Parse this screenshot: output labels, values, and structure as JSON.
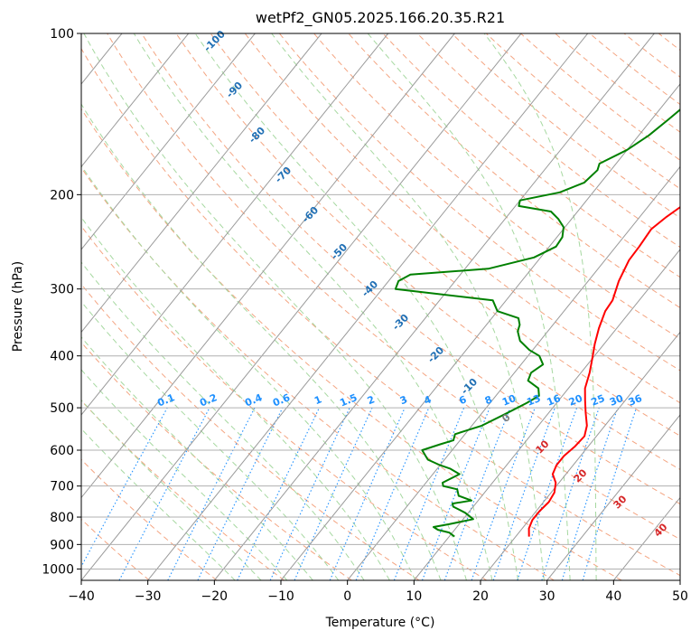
{
  "chart_data": {
    "type": "line",
    "title": "wetPf2_GN05.2025.166.20.35.R21",
    "xlabel": "Temperature (°C)",
    "ylabel": "Pressure (hPa)",
    "xlim": [
      -40,
      50
    ],
    "ylim": [
      1050,
      100
    ],
    "yscale": "log",
    "grid": true,
    "x_ticks": [
      "−40",
      "−30",
      "−20",
      "−10",
      "0",
      "10",
      "20",
      "30",
      "40",
      "50"
    ],
    "y_ticks": [
      "100",
      "200",
      "300",
      "400",
      "500",
      "600",
      "700",
      "800",
      "900",
      "1000"
    ],
    "series": [
      {
        "color": "#ff0000",
        "points": [
          [
            22,
            870
          ],
          [
            21,
            840
          ],
          [
            20.5,
            810
          ],
          [
            20.5,
            780
          ],
          [
            20.8,
            750
          ],
          [
            20.5,
            720
          ],
          [
            19.5,
            690
          ],
          [
            18,
            665
          ],
          [
            17.5,
            640
          ],
          [
            17.5,
            615
          ],
          [
            18,
            590
          ],
          [
            18.2,
            565
          ],
          [
            17.3,
            540
          ],
          [
            15.5,
            510
          ],
          [
            14,
            485
          ],
          [
            12.5,
            460
          ],
          [
            11.3,
            430
          ],
          [
            10,
            405
          ],
          [
            8.6,
            380
          ],
          [
            7.3,
            355
          ],
          [
            6.2,
            330
          ],
          [
            6,
            315
          ],
          [
            4.6,
            290
          ],
          [
            3.6,
            265
          ],
          [
            3.5,
            250
          ],
          [
            3.2,
            232
          ],
          [
            4,
            220
          ],
          [
            5.3,
            207
          ],
          [
            6,
            200
          ],
          [
            5.8,
            185
          ],
          [
            6.2,
            173
          ],
          [
            5.9,
            160
          ],
          [
            5.4,
            150
          ],
          [
            5,
            140
          ],
          [
            5.1,
            131
          ],
          [
            6.3,
            122
          ],
          [
            7.6,
            115
          ],
          [
            8.7,
            110
          ],
          [
            10.5,
            103
          ],
          [
            12.5,
            97
          ]
        ]
      },
      {
        "color": "#008000",
        "points": [
          [
            10.8,
            870
          ],
          [
            9.5,
            855
          ],
          [
            7.5,
            845
          ],
          [
            6.5,
            835
          ],
          [
            8.5,
            825
          ],
          [
            11.5,
            807
          ],
          [
            9.5,
            785
          ],
          [
            7,
            765
          ],
          [
            6.5,
            755
          ],
          [
            9,
            745
          ],
          [
            6.5,
            730
          ],
          [
            5.5,
            710
          ],
          [
            3,
            700
          ],
          [
            2.5,
            690
          ],
          [
            4,
            665
          ],
          [
            2,
            650
          ],
          [
            0,
            640
          ],
          [
            -2.5,
            625
          ],
          [
            -4.5,
            600
          ],
          [
            -2.5,
            585
          ],
          [
            -1,
            575
          ],
          [
            -1.5,
            560
          ],
          [
            0,
            550
          ],
          [
            1.5,
            540
          ],
          [
            3.5,
            515
          ],
          [
            5.5,
            490
          ],
          [
            6.5,
            475
          ],
          [
            5.5,
            460
          ],
          [
            3,
            445
          ],
          [
            2.5,
            430
          ],
          [
            3.3,
            415
          ],
          [
            1.7,
            400
          ],
          [
            -0.5,
            390
          ],
          [
            -3,
            375
          ],
          [
            -4.5,
            360
          ],
          [
            -5,
            350
          ],
          [
            -6,
            340
          ],
          [
            -10,
            330
          ],
          [
            -12,
            315
          ],
          [
            -28,
            300
          ],
          [
            -28.5,
            290
          ],
          [
            -27.5,
            282
          ],
          [
            -16.5,
            275
          ],
          [
            -11,
            262
          ],
          [
            -9,
            250
          ],
          [
            -9.2,
            240
          ],
          [
            -10.2,
            230
          ],
          [
            -12,
            222
          ],
          [
            -14,
            215
          ],
          [
            -19.5,
            210
          ],
          [
            -20,
            205
          ],
          [
            -15,
            198
          ],
          [
            -12.5,
            190
          ],
          [
            -12,
            180
          ],
          [
            -12.5,
            175
          ],
          [
            -10,
            165
          ],
          [
            -8.5,
            155
          ],
          [
            -7.5,
            145
          ],
          [
            -6.5,
            135
          ],
          [
            -4,
            125
          ],
          [
            -2,
            118
          ],
          [
            -1.5,
            110
          ],
          [
            0,
            103
          ],
          [
            1.5,
            97
          ]
        ]
      }
    ],
    "dry_adiabat_labels": [
      "-100",
      "-90",
      "-80",
      "-70",
      "-60",
      "-50",
      "-40",
      "-30",
      "-20",
      "-10",
      "0",
      "10",
      "20",
      "30",
      "40"
    ],
    "mixing_ratio_labels": [
      "0.1",
      "0.2",
      "0.4",
      "0.6",
      "1",
      "1.5",
      "2",
      "3",
      "4",
      "6",
      "8",
      "10",
      "13",
      "16",
      "20",
      "25",
      "30",
      "36"
    ]
  },
  "colors": {
    "temperature": "#ff0000",
    "dewpoint": "#008000",
    "dry_adiabat": "#f4a582",
    "moist_adiabat": "#a6d8a0",
    "mixing_ratio": "#1e90ff",
    "isotherm": "#888888"
  }
}
